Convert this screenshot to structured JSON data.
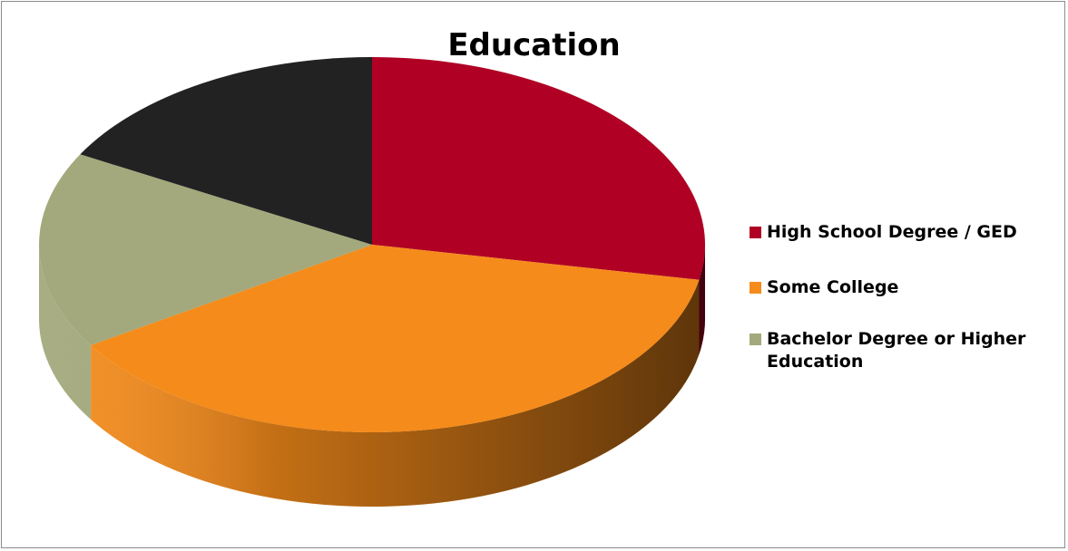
{
  "chart_data": {
    "type": "pie",
    "title": "Education",
    "categories": [
      "High School Degree / GED",
      "Some College",
      "Bachelor Degree or Higher Education",
      ""
    ],
    "values": [
      28,
      38,
      17,
      17
    ],
    "colors": [
      "#b00024",
      "#f58b1a",
      "#a3a97c",
      "#222222"
    ],
    "legend_position": "right",
    "style": "3d"
  }
}
